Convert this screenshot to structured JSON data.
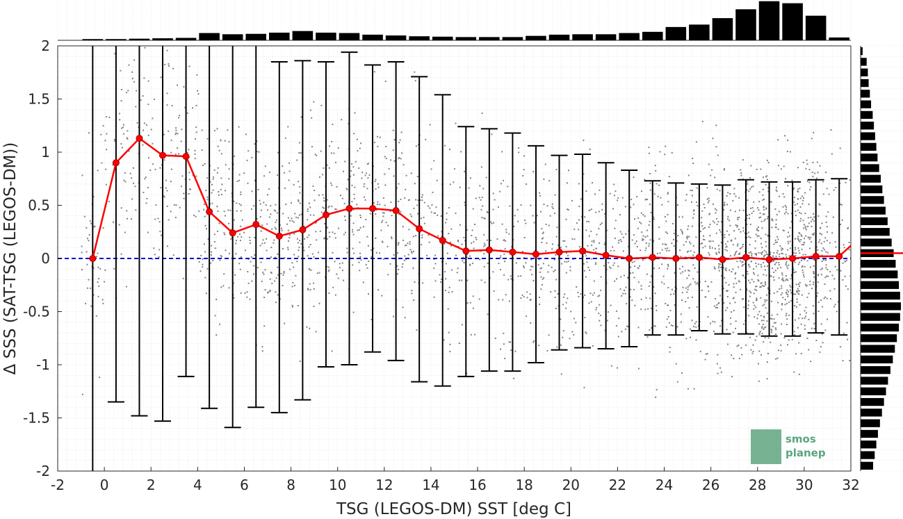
{
  "chart_data": {
    "type": "scatter",
    "xlabel": "TSG (LEGOS-DM) SST [deg C]",
    "ylabel": "Δ SSS (SAT-TSG (LEGOS-DM))",
    "xlim": [
      -2,
      32
    ],
    "ylim": [
      -2,
      2
    ],
    "x_ticks": [
      "-2",
      "0",
      "2",
      "4",
      "6",
      "8",
      "10",
      "12",
      "14",
      "16",
      "18",
      "20",
      "22",
      "24",
      "26",
      "28",
      "30",
      "32"
    ],
    "y_ticks": [
      "2",
      "1.5",
      "1",
      "0.5",
      "0",
      "-0.5",
      "-1",
      "-1.5",
      "-2"
    ],
    "grid": "minor dotted",
    "colors": {
      "scatter": "#808080",
      "mean_line": "#ff0000",
      "zero_line": "#0000cc",
      "error_bars": "#000000",
      "histograms": "#000000"
    },
    "zero_line": 0,
    "bin_centers": [
      -0.5,
      0.5,
      1.5,
      2.5,
      3.5,
      4.5,
      5.5,
      6.5,
      7.5,
      8.5,
      9.5,
      10.5,
      11.5,
      12.5,
      13.5,
      14.5,
      15.5,
      16.5,
      17.5,
      18.5,
      19.5,
      20.5,
      21.5,
      22.5,
      23.5,
      24.5,
      25.5,
      26.5,
      27.5,
      28.5,
      29.5,
      30.5,
      31.5
    ],
    "series": [
      {
        "type": "line",
        "values": [
          0.0,
          0.9,
          1.13,
          0.97,
          0.96,
          0.44,
          0.24,
          0.32,
          0.21,
          0.27,
          0.41,
          0.47,
          0.47,
          0.45,
          0.28,
          0.17,
          0.07,
          0.08,
          0.06,
          0.04,
          0.06,
          0.07,
          0.03,
          0.0,
          0.01,
          0.0,
          0.01,
          -0.01,
          0.01,
          -0.01,
          0.0,
          0.02,
          0.02
        ]
      }
    ],
    "mean_line_end": {
      "x": 32,
      "y": 0.12
    },
    "error_bars": {
      "upper": [
        2.0,
        2.0,
        2.0,
        2.0,
        2.0,
        2.0,
        2.0,
        2.0,
        1.85,
        1.86,
        1.85,
        1.94,
        1.82,
        1.85,
        1.71,
        1.54,
        1.24,
        1.22,
        1.18,
        1.06,
        0.97,
        0.98,
        0.9,
        0.83,
        0.73,
        0.71,
        0.7,
        0.69,
        0.74,
        0.72,
        0.72,
        0.74,
        0.75
      ],
      "lower": [
        -2.0,
        -1.35,
        -1.48,
        -1.53,
        -1.11,
        -1.41,
        -1.59,
        -1.4,
        -1.45,
        -1.33,
        -1.02,
        -1.0,
        -0.88,
        -0.96,
        -1.16,
        -1.2,
        -1.11,
        -1.06,
        -1.06,
        -0.98,
        -0.86,
        -0.84,
        -0.85,
        -0.83,
        -0.72,
        -0.72,
        -0.68,
        -0.71,
        -0.71,
        -0.73,
        -0.73,
        -0.7,
        -0.72
      ],
      "upper_cap": [
        false,
        false,
        false,
        false,
        false,
        false,
        false,
        false,
        true,
        true,
        true,
        true,
        true,
        true,
        true,
        true,
        true,
        true,
        true,
        true,
        true,
        true,
        true,
        true,
        true,
        true,
        true,
        true,
        true,
        true,
        true,
        true,
        true
      ],
      "lower_cap": [
        false,
        true,
        true,
        true,
        true,
        true,
        true,
        true,
        true,
        true,
        true,
        true,
        true,
        true,
        true,
        true,
        true,
        true,
        true,
        true,
        true,
        true,
        true,
        true,
        true,
        true,
        true,
        true,
        true,
        true,
        true,
        true,
        true
      ]
    },
    "top_histogram": {
      "relative_counts": [
        0.03,
        0.03,
        0.04,
        0.05,
        0.06,
        0.18,
        0.15,
        0.16,
        0.19,
        0.23,
        0.19,
        0.18,
        0.14,
        0.12,
        0.1,
        0.09,
        0.08,
        0.08,
        0.08,
        0.11,
        0.14,
        0.15,
        0.15,
        0.18,
        0.21,
        0.33,
        0.39,
        0.55,
        0.77,
        0.97,
        0.92,
        0.61,
        0.07
      ]
    },
    "right_histogram": {
      "y_bin_width": 0.1,
      "relative_counts": [
        0.05,
        0.15,
        0.18,
        0.2,
        0.23,
        0.26,
        0.3,
        0.33,
        0.36,
        0.39,
        0.42,
        0.46,
        0.5,
        0.54,
        0.58,
        0.62,
        0.67,
        0.72,
        0.77,
        0.82,
        0.87,
        0.92,
        0.95,
        0.98,
        1.0,
        0.98,
        0.95,
        0.9,
        0.85,
        0.8,
        0.74,
        0.68,
        0.63,
        0.58,
        0.53,
        0.48,
        0.43,
        0.39,
        0.35,
        0.31
      ]
    },
    "right_histogram_marker": 0.05
  },
  "watermark": {
    "line1": "smos",
    "line2": "planep"
  }
}
